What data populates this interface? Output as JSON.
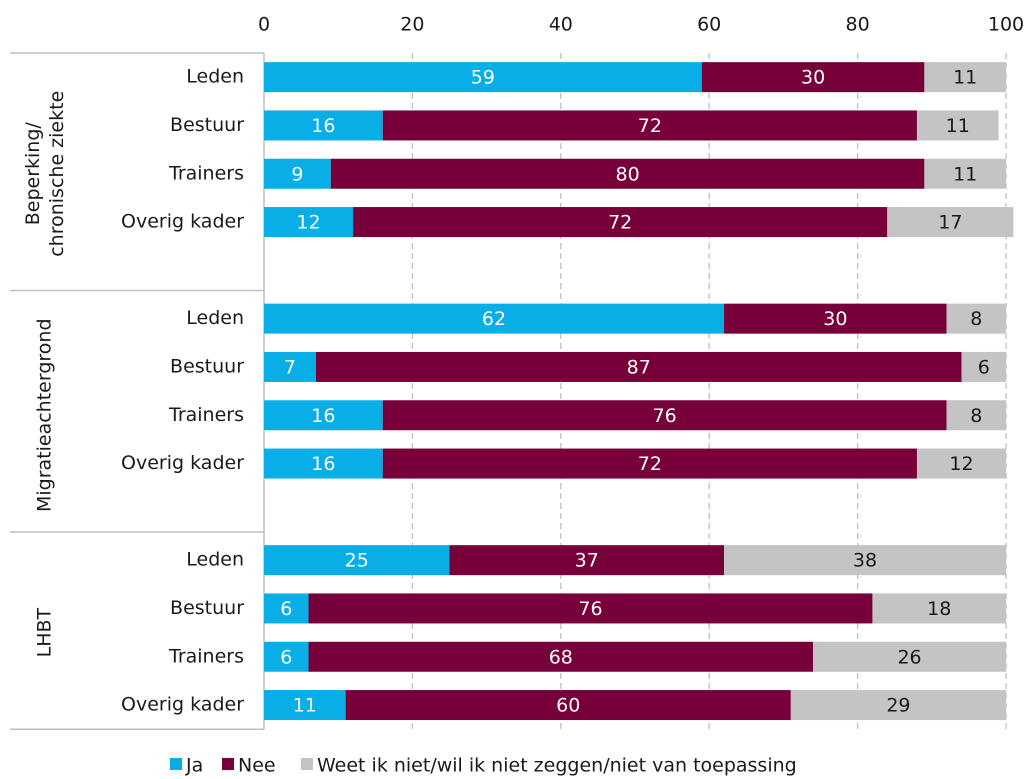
{
  "chart_data": {
    "type": "stacked_barh",
    "groups": [
      "Beperking/\nchronische ziekte",
      "Migratieachtergrond",
      "LHBT"
    ],
    "categories": [
      "Leden",
      "Bestuur",
      "Trainers",
      "Overig kader",
      null,
      "Leden",
      "Bestuur",
      "Trainers",
      "Overig kader",
      null,
      "Leden",
      "Bestuur",
      "Trainers",
      "Overig kader"
    ],
    "series": [
      {
        "name": "Ja",
        "color": "#0aaee6",
        "label_color": "#ffffff",
        "values": [
          59,
          16,
          9,
          12,
          null,
          62,
          7,
          16,
          16,
          null,
          25,
          6,
          6,
          11
        ]
      },
      {
        "name": "Nee",
        "color": "#78003a",
        "label_color": "#ffffff",
        "values": [
          30,
          72,
          80,
          72,
          null,
          30,
          87,
          76,
          72,
          null,
          37,
          76,
          68,
          60
        ]
      },
      {
        "name": "Weet ik niet/wil ik niet zeggen/niet van toepassing",
        "color": "#c4c4c4",
        "label_color": "#1a1a1a",
        "values": [
          11,
          11,
          11,
          17,
          null,
          8,
          6,
          8,
          12,
          null,
          38,
          18,
          26,
          29
        ]
      }
    ],
    "xlim": [
      0,
      100
    ],
    "xticks": [
      0,
      20,
      40,
      60,
      80,
      100
    ],
    "grid": true,
    "legend": "bottom"
  }
}
